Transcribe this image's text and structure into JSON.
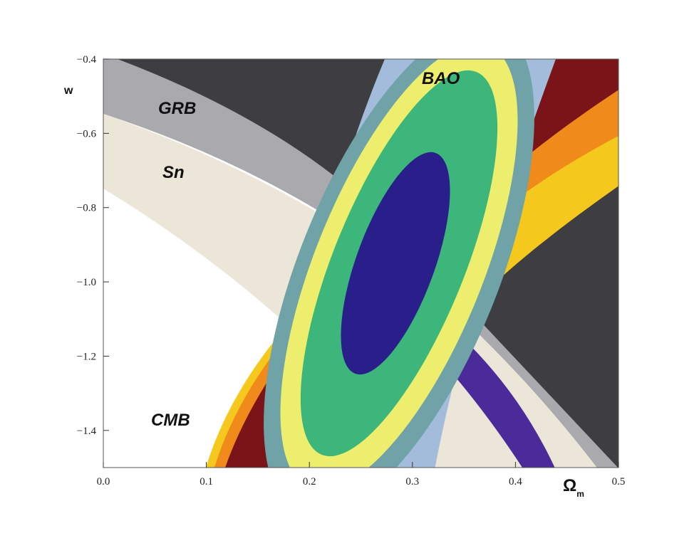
{
  "chart_data": {
    "type": "contour",
    "xlabel": {
      "symbol": "Ω",
      "subscript": "m"
    },
    "ylabel": "w",
    "annotations": [
      "GRB",
      "Sn",
      "BAO",
      "CMB"
    ],
    "xlim": [
      0,
      0.5
    ],
    "ylim": [
      -1.5,
      -0.4
    ],
    "xticks": [
      {
        "value": 0,
        "label": "0.0"
      },
      0.1,
      0.2,
      0.3,
      0.4,
      0.5
    ],
    "yticks": [
      {
        "value": -0.4,
        "label": "−0.4"
      },
      {
        "value": -0.6,
        "label": "−0.6"
      },
      {
        "value": -0.8,
        "label": "−0.8"
      },
      {
        "value": -1.0,
        "label": "−1.0"
      },
      {
        "value": -1.2,
        "label": "−1.2"
      },
      {
        "value": -1.4,
        "label": "−1.4"
      }
    ]
  }
}
